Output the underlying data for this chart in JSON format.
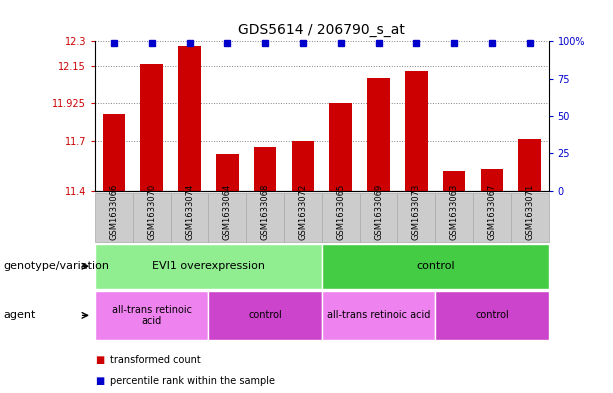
{
  "title": "GDS5614 / 206790_s_at",
  "samples": [
    "GSM1633066",
    "GSM1633070",
    "GSM1633074",
    "GSM1633064",
    "GSM1633068",
    "GSM1633072",
    "GSM1633065",
    "GSM1633069",
    "GSM1633073",
    "GSM1633063",
    "GSM1633067",
    "GSM1633071"
  ],
  "bar_values": [
    11.86,
    12.16,
    12.27,
    11.62,
    11.66,
    11.7,
    11.93,
    12.08,
    12.12,
    11.52,
    11.53,
    11.71
  ],
  "ymin": 11.4,
  "ymax": 12.3,
  "yticks": [
    11.4,
    11.7,
    11.925,
    12.15,
    12.3
  ],
  "ytick_labels": [
    "11.4",
    "11.7",
    "11.925",
    "12.15",
    "12.3"
  ],
  "right_yticks": [
    0,
    25,
    50,
    75,
    100
  ],
  "right_ytick_labels": [
    "0",
    "25",
    "50",
    "75",
    "100%"
  ],
  "bar_color": "#cc0000",
  "dot_color": "#0000cc",
  "genotype_groups": [
    {
      "label": "EVI1 overexpression",
      "start": 0,
      "end": 6,
      "color": "#90ee90"
    },
    {
      "label": "control",
      "start": 6,
      "end": 12,
      "color": "#44cc44"
    }
  ],
  "agent_groups": [
    {
      "label": "all-trans retinoic\nacid",
      "start": 0,
      "end": 3,
      "color": "#ee82ee"
    },
    {
      "label": "control",
      "start": 3,
      "end": 6,
      "color": "#cc44cc"
    },
    {
      "label": "all-trans retinoic acid",
      "start": 6,
      "end": 9,
      "color": "#ee82ee"
    },
    {
      "label": "control",
      "start": 9,
      "end": 12,
      "color": "#cc44cc"
    }
  ],
  "legend_red_label": "transformed count",
  "legend_blue_label": "percentile rank within the sample",
  "title_fontsize": 10,
  "tick_fontsize": 7,
  "label_fontsize": 8,
  "sample_label_fontsize": 6,
  "group_label_fontsize": 8,
  "genotype_label": "genotype/variation",
  "agent_label": "agent",
  "sample_bg_color": "#cccccc",
  "sample_border_color": "#aaaaaa"
}
